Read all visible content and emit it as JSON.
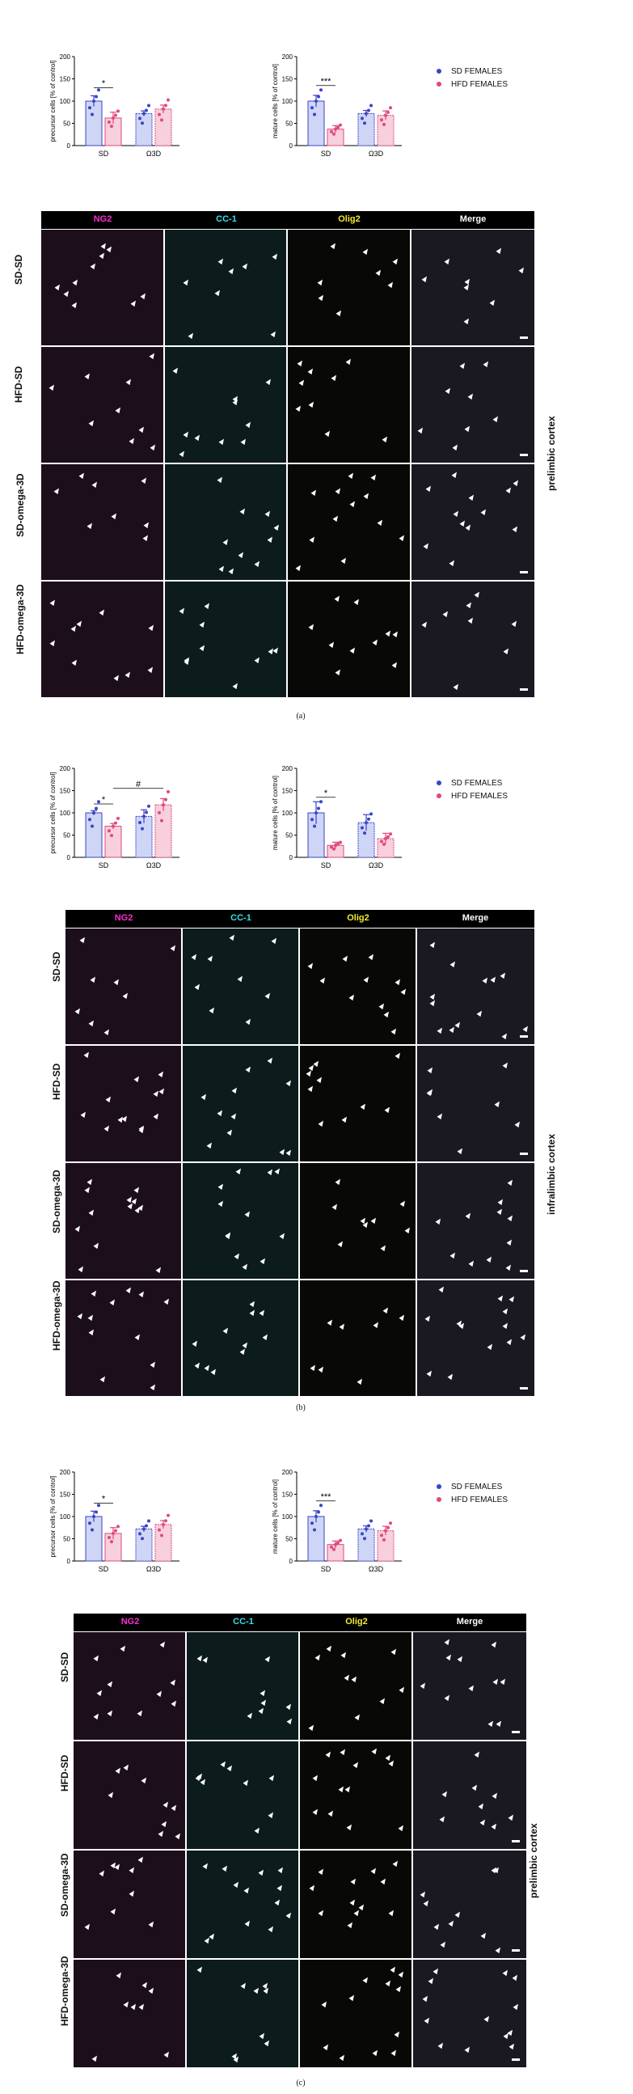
{
  "colors": {
    "sd": "#3a44c8",
    "hfd": "#e0497a",
    "sd_fill": "#cfd6f5",
    "hfd_fill": "#f7cfdd",
    "ng2": "#ff2bd6",
    "cc1": "#36e0e6",
    "olig2": "#f2ec2a",
    "merge": "#ffffff"
  },
  "channels": [
    "NG2",
    "CC-1",
    "Olig2",
    "Merge"
  ],
  "groups": [
    "SD-SD",
    "HFD-SD",
    "SD-omega-3D",
    "HFD-omega-3D"
  ],
  "legend": [
    "SD FEMALES",
    "HFD FEMALES"
  ],
  "panels": [
    {
      "caption": "(a)",
      "region": "prelimbic cortex",
      "charts": [
        {
          "type": "bar",
          "ylabel": "precursor cells [% of control]",
          "categories": [
            "SD",
            "Ω3D"
          ],
          "ylim": [
            0,
            200
          ],
          "yticks": [
            0,
            50,
            100,
            150,
            200
          ],
          "series": [
            {
              "name": "SD FEMALES",
              "values": [
                100,
                72
              ],
              "sem": [
                12,
                6
              ]
            },
            {
              "name": "HFD FEMALES",
              "values": [
                62,
                82
              ],
              "sem": [
                13,
                9
              ]
            }
          ],
          "annotations": [
            {
              "label": "*",
              "from": 0,
              "to": 1,
              "y": 130
            }
          ]
        },
        {
          "type": "bar",
          "ylabel": "mature cells [% of control]",
          "categories": [
            "SD",
            "Ω3D"
          ],
          "ylim": [
            0,
            200
          ],
          "yticks": [
            0,
            50,
            100,
            150,
            200
          ],
          "series": [
            {
              "name": "SD FEMALES",
              "values": [
                100,
                72
              ],
              "sem": [
                13,
                7
              ]
            },
            {
              "name": "HFD FEMALES",
              "values": [
                37,
                68
              ],
              "sem": [
                8,
                10
              ]
            }
          ],
          "annotations": [
            {
              "label": "***",
              "from": 0,
              "to": 1,
              "y": 135
            }
          ]
        }
      ]
    },
    {
      "caption": "(b)",
      "region": "infralimbic cortex",
      "charts": [
        {
          "type": "bar",
          "ylabel": "precursor cells [% of control]",
          "categories": [
            "SD",
            "Ω3D"
          ],
          "ylim": [
            0,
            200
          ],
          "yticks": [
            0,
            50,
            100,
            150,
            200
          ],
          "series": [
            {
              "name": "SD FEMALES",
              "values": [
                100,
                92
              ],
              "sem": [
                5,
                15
              ]
            },
            {
              "name": "HFD FEMALES",
              "values": [
                70,
                118
              ],
              "sem": [
                6,
                14
              ]
            }
          ],
          "annotations": [
            {
              "label": "*",
              "from": 0,
              "to": 1,
              "y": 120
            },
            {
              "label": "#",
              "from": 1,
              "to": 3,
              "y": 155
            }
          ]
        },
        {
          "type": "bar",
          "ylabel": "mature cells [% of control]",
          "categories": [
            "SD",
            "Ω3D"
          ],
          "ylim": [
            0,
            200
          ],
          "yticks": [
            0,
            50,
            100,
            150,
            200
          ],
          "series": [
            {
              "name": "SD FEMALES",
              "values": [
                100,
                78
              ],
              "sem": [
                25,
                18
              ]
            },
            {
              "name": "HFD FEMALES",
              "values": [
                27,
                42
              ],
              "sem": [
                7,
                12
              ]
            }
          ],
          "annotations": [
            {
              "label": "*",
              "from": 0,
              "to": 1,
              "y": 135
            }
          ]
        }
      ]
    },
    {
      "caption": "(c)",
      "region": "prelimbic cortex",
      "charts": [
        {
          "type": "bar",
          "ylabel": "precursor cells [% of control]",
          "categories": [
            "SD",
            "Ω3D"
          ],
          "ylim": [
            0,
            200
          ],
          "yticks": [
            0,
            50,
            100,
            150,
            200
          ],
          "series": [
            {
              "name": "SD FEMALES",
              "values": [
                100,
                72
              ],
              "sem": [
                12,
                6
              ]
            },
            {
              "name": "HFD FEMALES",
              "values": [
                62,
                82
              ],
              "sem": [
                13,
                9
              ]
            }
          ],
          "annotations": [
            {
              "label": "*",
              "from": 0,
              "to": 1,
              "y": 130
            }
          ]
        },
        {
          "type": "bar",
          "ylabel": "mature cells [% of control]",
          "categories": [
            "SD",
            "Ω3D"
          ],
          "ylim": [
            0,
            200
          ],
          "yticks": [
            0,
            50,
            100,
            150,
            200
          ],
          "series": [
            {
              "name": "SD FEMALES",
              "values": [
                100,
                72
              ],
              "sem": [
                13,
                7
              ]
            },
            {
              "name": "HFD FEMALES",
              "values": [
                37,
                68
              ],
              "sem": [
                8,
                10
              ]
            }
          ],
          "annotations": [
            {
              "label": "***",
              "from": 0,
              "to": 1,
              "y": 135
            }
          ]
        }
      ]
    }
  ]
}
